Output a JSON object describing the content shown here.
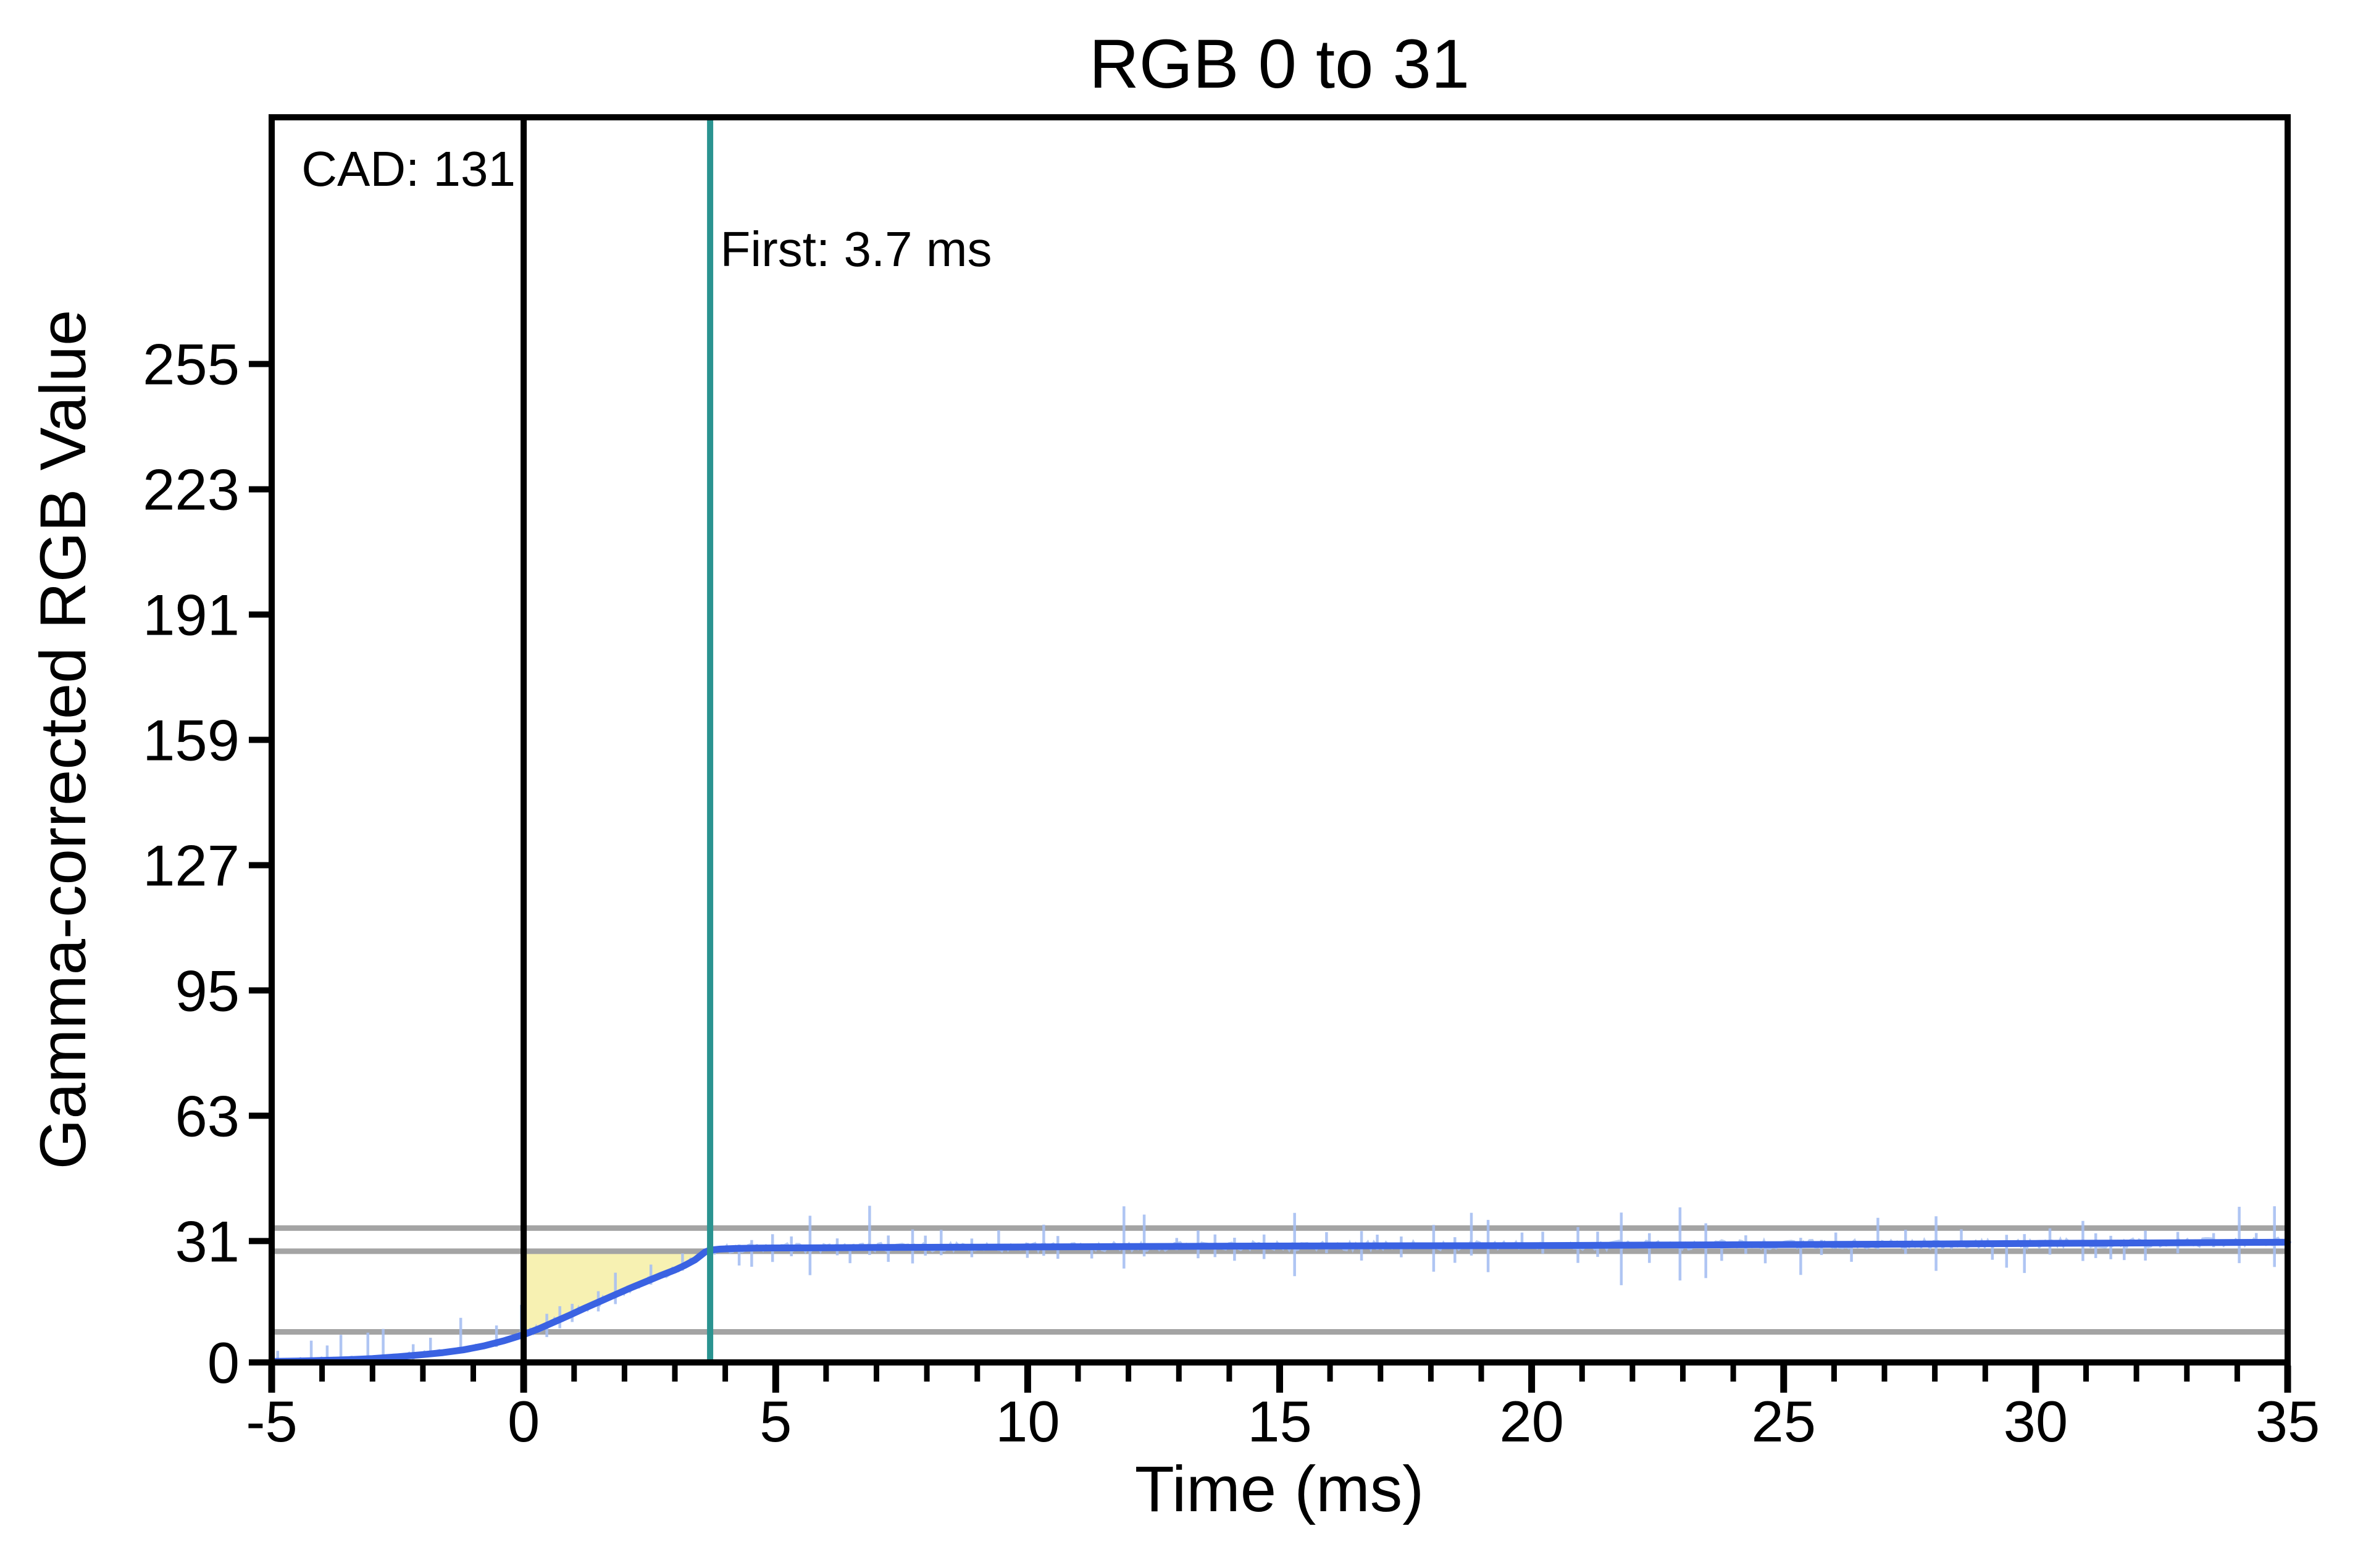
{
  "figure": {
    "background": "#FFFFFF",
    "text_color": "#000000"
  },
  "chart_data": {
    "type": "line",
    "title": "RGB 0 to 31",
    "xlabel": "Time (ms)",
    "ylabel": "Gamma-corrected RGB Value",
    "xlim": [
      -5,
      35
    ],
    "ylim": [
      0,
      318
    ],
    "x_major_ticks": [
      -5,
      0,
      5,
      10,
      15,
      20,
      25,
      30,
      35
    ],
    "x_minor_tick_step_ms": 1,
    "y_ticks": [
      0,
      31,
      63,
      95,
      127,
      159,
      191,
      223,
      255
    ],
    "grid": false,
    "series": [
      {
        "name": "gamma-corrected-response",
        "color": "#3A62E2",
        "line_width": 11,
        "points": [
          [
            -5,
            0.25
          ],
          [
            -4.5,
            0.35
          ],
          [
            -4,
            0.5
          ],
          [
            -3.5,
            0.7
          ],
          [
            -3,
            1.0
          ],
          [
            -2.5,
            1.45
          ],
          [
            -2,
            2.0
          ],
          [
            -1.6,
            2.5
          ],
          [
            -1.2,
            3.2
          ],
          [
            -0.8,
            4.2
          ],
          [
            -0.4,
            5.5
          ],
          [
            0,
            7.1
          ],
          [
            0.3,
            8.6
          ],
          [
            0.6,
            10.3
          ],
          [
            0.9,
            12.0
          ],
          [
            1.2,
            13.8
          ],
          [
            1.5,
            15.5
          ],
          [
            1.8,
            17.2
          ],
          [
            2.1,
            18.9
          ],
          [
            2.4,
            20.5
          ],
          [
            2.7,
            22.1
          ],
          [
            3,
            23.6
          ],
          [
            3.2,
            24.8
          ],
          [
            3.4,
            26.2
          ],
          [
            3.5,
            27.2
          ],
          [
            3.6,
            28.2
          ],
          [
            3.7,
            28.7
          ],
          [
            3.9,
            28.95
          ],
          [
            4.2,
            29.1
          ],
          [
            4.6,
            29.2
          ],
          [
            5,
            29.25
          ],
          [
            6,
            29.3
          ],
          [
            7,
            29.35
          ],
          [
            8,
            29.4
          ],
          [
            9,
            29.45
          ],
          [
            10,
            29.5
          ],
          [
            12,
            29.6
          ],
          [
            14,
            29.7
          ],
          [
            16,
            29.75
          ],
          [
            18,
            29.8
          ],
          [
            20,
            29.85
          ],
          [
            22,
            29.95
          ],
          [
            24,
            30.05
          ],
          [
            26,
            30.15
          ],
          [
            28,
            30.25
          ],
          [
            30,
            30.4
          ],
          [
            32,
            30.5
          ],
          [
            34,
            30.65
          ],
          [
            35,
            30.7
          ]
        ]
      }
    ],
    "reference_lines": {
      "horizontal": [
        {
          "y": 34.3,
          "role": "upper-tolerance",
          "color": "#A4A4A4"
        },
        {
          "y": 28.4,
          "role": "lower-tolerance",
          "color": "#A4A4A4"
        },
        {
          "y": 7.8,
          "role": "onset-level",
          "color": "#A4A4A4"
        }
      ],
      "vertical": [
        {
          "x": 0,
          "role": "stimulus-onset",
          "color": "#000000"
        },
        {
          "x": 3.7,
          "role": "first-response",
          "color": "#2A9390"
        }
      ]
    },
    "shaded_region": {
      "role": "response-time-area",
      "from_x": 0,
      "top_y": 28.4,
      "color": "#F6EFA4",
      "opacity": 0.85
    },
    "annotations": {
      "cad": {
        "text": "CAD: 131",
        "x_ms": -4.41,
        "y_value": 300.5
      },
      "first": {
        "text": "First: 3.7 ms",
        "x_ms": 3.9,
        "y_value": 280
      }
    },
    "noise": {
      "color": "#A6BFF2",
      "seed": 20,
      "fuzz": {
        "step_ms": 0.06,
        "amp_pre": 0.8,
        "amp_rise": 1.0,
        "amp_post": 1.15,
        "width": 3.5,
        "opacity": 0.8
      },
      "spikes": {
        "width": 4.5,
        "opacity": 0.9,
        "gap_ms": [
          0.24,
          0.72
        ],
        "pre": {
          "up": [
            2.5,
            11.5
          ],
          "down": [
            0.3,
            1.5
          ]
        },
        "rise": {
          "up": [
            2.5,
            6.5
          ],
          "down": [
            0.8,
            3.2
          ]
        },
        "post": {
          "small_up": [
            1.8,
            4.8
          ],
          "big_up": [
            5,
            11
          ],
          "big_frac": 0.28,
          "small_down": [
            1.8,
            4.8
          ],
          "big_down": [
            4.5,
            10.5
          ]
        }
      }
    }
  }
}
